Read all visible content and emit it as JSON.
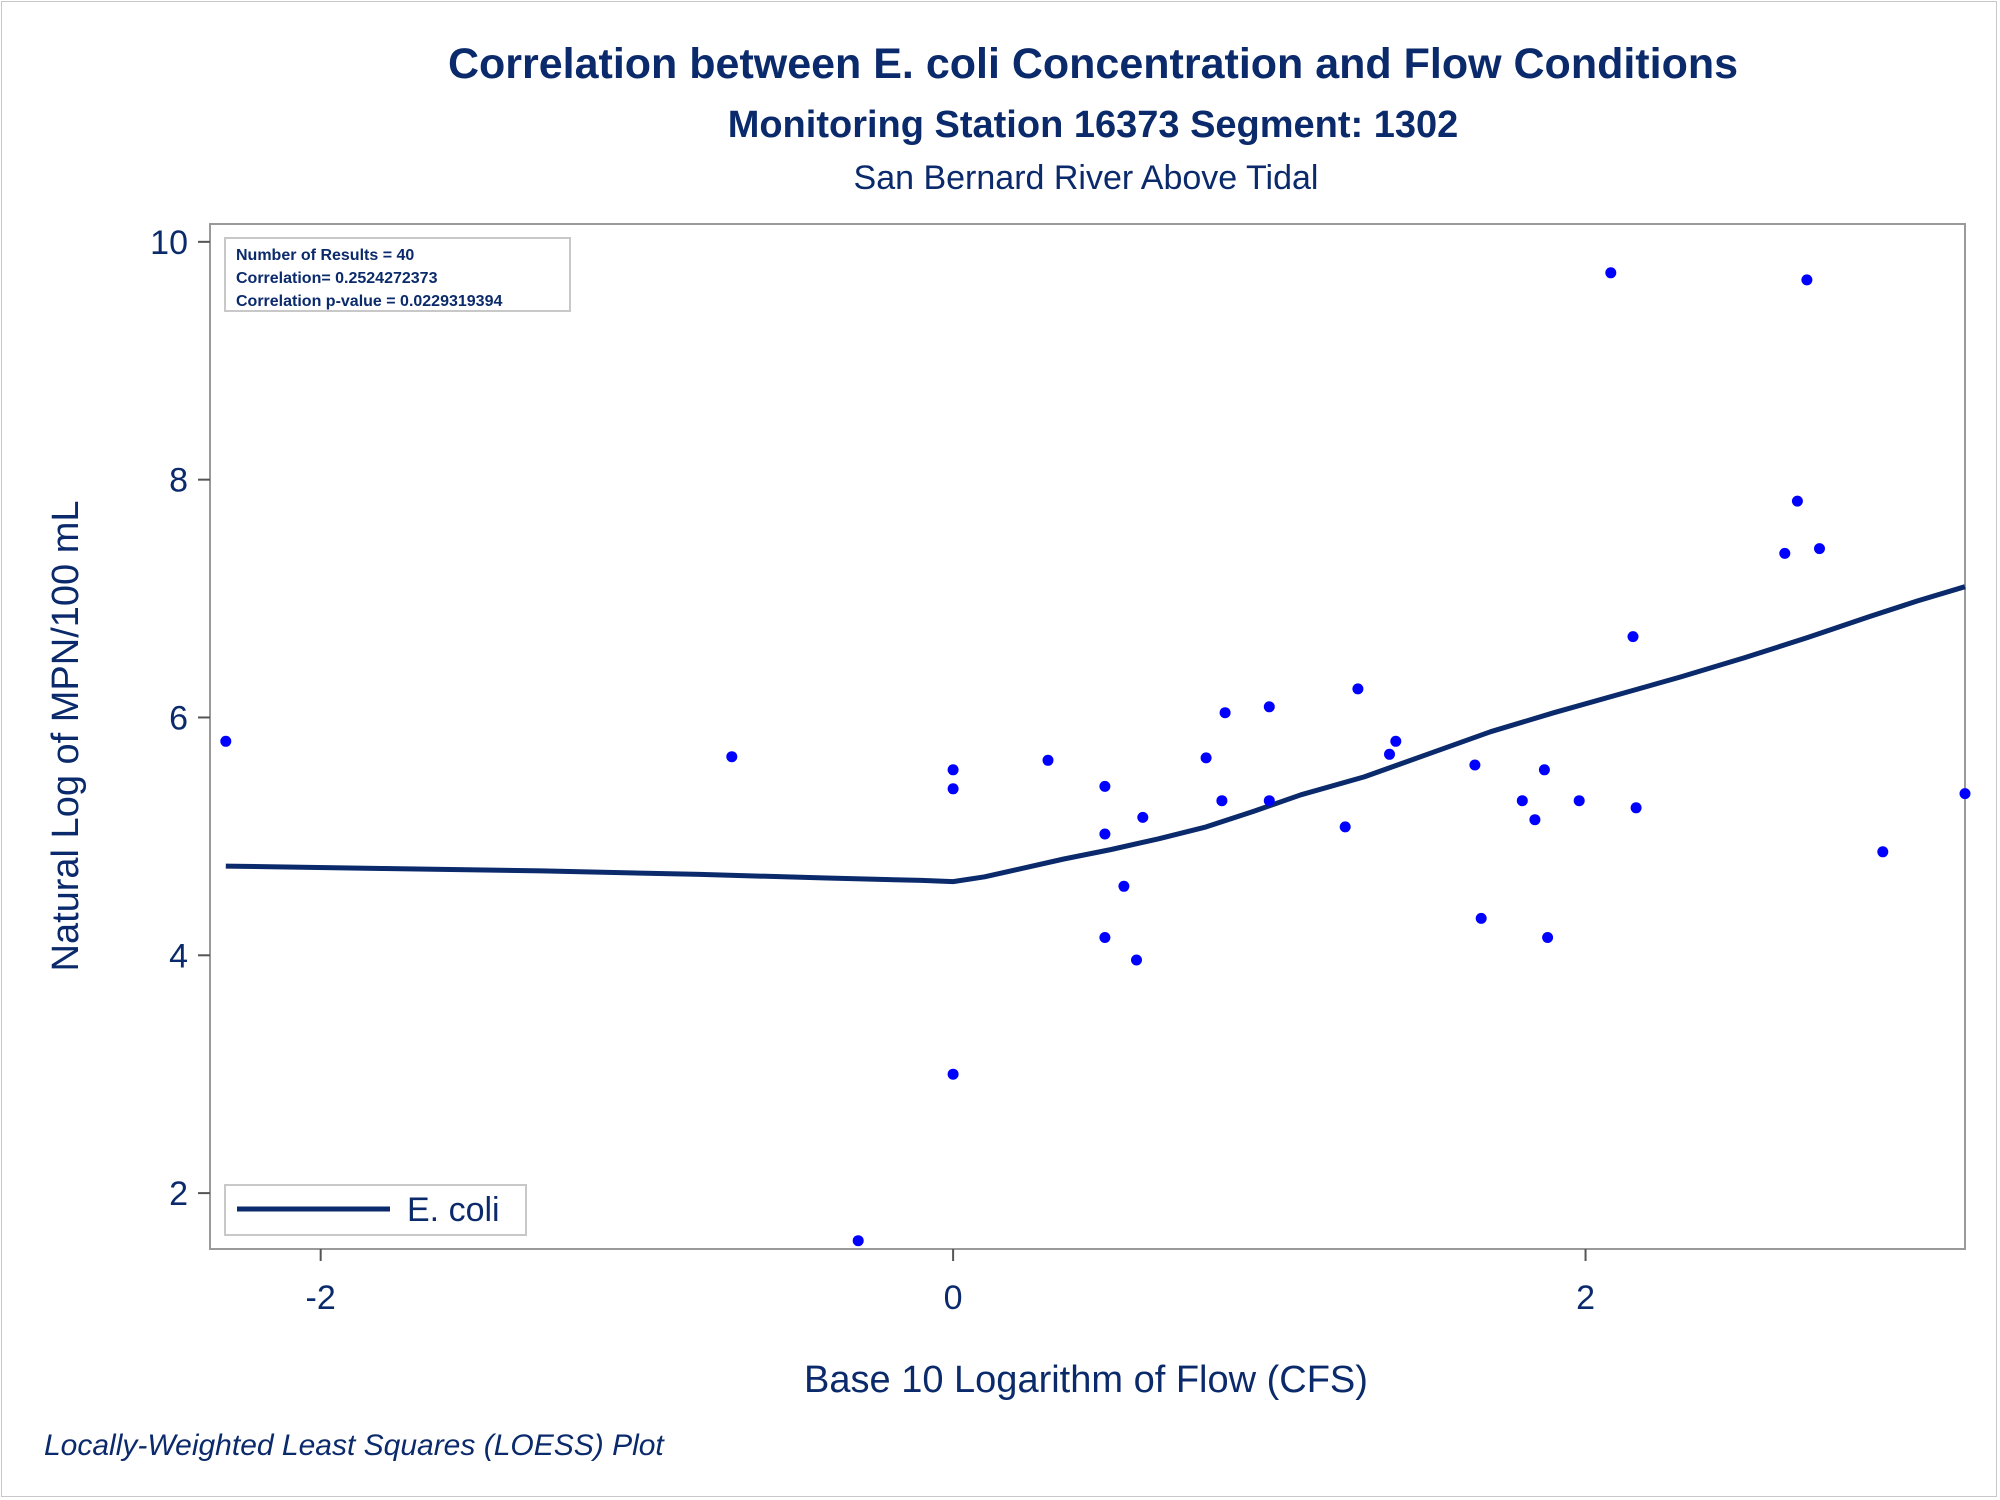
{
  "chart_data": {
    "type": "scatter",
    "title": "Correlation between E. coli Concentration and Flow Conditions",
    "subtitle": "Monitoring Station 16373 Segment: 1302",
    "subtitle2": "San Bernard River Above Tidal",
    "xlabel": "Base 10 Logarithm of Flow (CFS)",
    "ylabel": "Natural Log of MPN/100 mL",
    "xlim": [
      -2.35,
      3.2
    ],
    "ylim": [
      1.53,
      10.15
    ],
    "xticks": [
      -2,
      0,
      2
    ],
    "yticks": [
      2,
      4,
      6,
      8,
      10
    ],
    "xtick_labels": [
      "-2",
      "0",
      "2"
    ],
    "ytick_labels": [
      "2",
      "4",
      "6",
      "8",
      "10"
    ],
    "grid": false,
    "legend_placement": "bottom-left",
    "stats": {
      "results": "Number of Results = 40",
      "correlation": "Correlation= 0.2524272373",
      "pvalue": "Correlation p-value = 0.0229319394"
    },
    "series": [
      {
        "kind": "points",
        "color": "#0000ff",
        "points": [
          [
            -2.3,
            5.8
          ],
          [
            -0.7,
            5.67
          ],
          [
            -0.3,
            1.6
          ],
          [
            0.0,
            5.56
          ],
          [
            0.0,
            5.4
          ],
          [
            0.0,
            3.0
          ],
          [
            0.3,
            5.64
          ],
          [
            0.48,
            5.42
          ],
          [
            0.48,
            5.02
          ],
          [
            0.48,
            4.15
          ],
          [
            0.54,
            4.58
          ],
          [
            0.58,
            3.96
          ],
          [
            0.6,
            5.16
          ],
          [
            0.8,
            5.66
          ],
          [
            0.85,
            5.3
          ],
          [
            0.86,
            6.04
          ],
          [
            1.0,
            6.09
          ],
          [
            1.0,
            5.3
          ],
          [
            1.24,
            5.08
          ],
          [
            1.28,
            6.24
          ],
          [
            1.38,
            5.69
          ],
          [
            1.4,
            5.8
          ],
          [
            1.65,
            5.6
          ],
          [
            1.67,
            4.31
          ],
          [
            1.8,
            5.3
          ],
          [
            1.84,
            5.14
          ],
          [
            1.87,
            5.56
          ],
          [
            1.88,
            4.15
          ],
          [
            1.98,
            5.3
          ],
          [
            2.08,
            9.74
          ],
          [
            2.15,
            6.68
          ],
          [
            2.16,
            5.24
          ],
          [
            2.63,
            7.38
          ],
          [
            2.67,
            7.82
          ],
          [
            2.7,
            9.68
          ],
          [
            2.74,
            7.42
          ],
          [
            2.94,
            4.87
          ],
          [
            3.2,
            5.36
          ]
        ]
      },
      {
        "kind": "line",
        "name": "E. coli",
        "color": "#0b2a6b",
        "points": [
          [
            -2.3,
            4.75
          ],
          [
            -1.8,
            4.73
          ],
          [
            -1.3,
            4.71
          ],
          [
            -0.8,
            4.68
          ],
          [
            -0.4,
            4.65
          ],
          [
            -0.1,
            4.63
          ],
          [
            0.0,
            4.62
          ],
          [
            0.1,
            4.66
          ],
          [
            0.2,
            4.72
          ],
          [
            0.35,
            4.81
          ],
          [
            0.5,
            4.89
          ],
          [
            0.65,
            4.98
          ],
          [
            0.8,
            5.08
          ],
          [
            0.95,
            5.21
          ],
          [
            1.1,
            5.35
          ],
          [
            1.3,
            5.5
          ],
          [
            1.5,
            5.69
          ],
          [
            1.7,
            5.88
          ],
          [
            1.9,
            6.04
          ],
          [
            2.1,
            6.19
          ],
          [
            2.3,
            6.34
          ],
          [
            2.5,
            6.5
          ],
          [
            2.7,
            6.67
          ],
          [
            2.9,
            6.85
          ],
          [
            3.05,
            6.98
          ],
          [
            3.2,
            7.1
          ]
        ]
      }
    ]
  },
  "footnote": "Locally-Weighted Least Squares (LOESS) Plot"
}
